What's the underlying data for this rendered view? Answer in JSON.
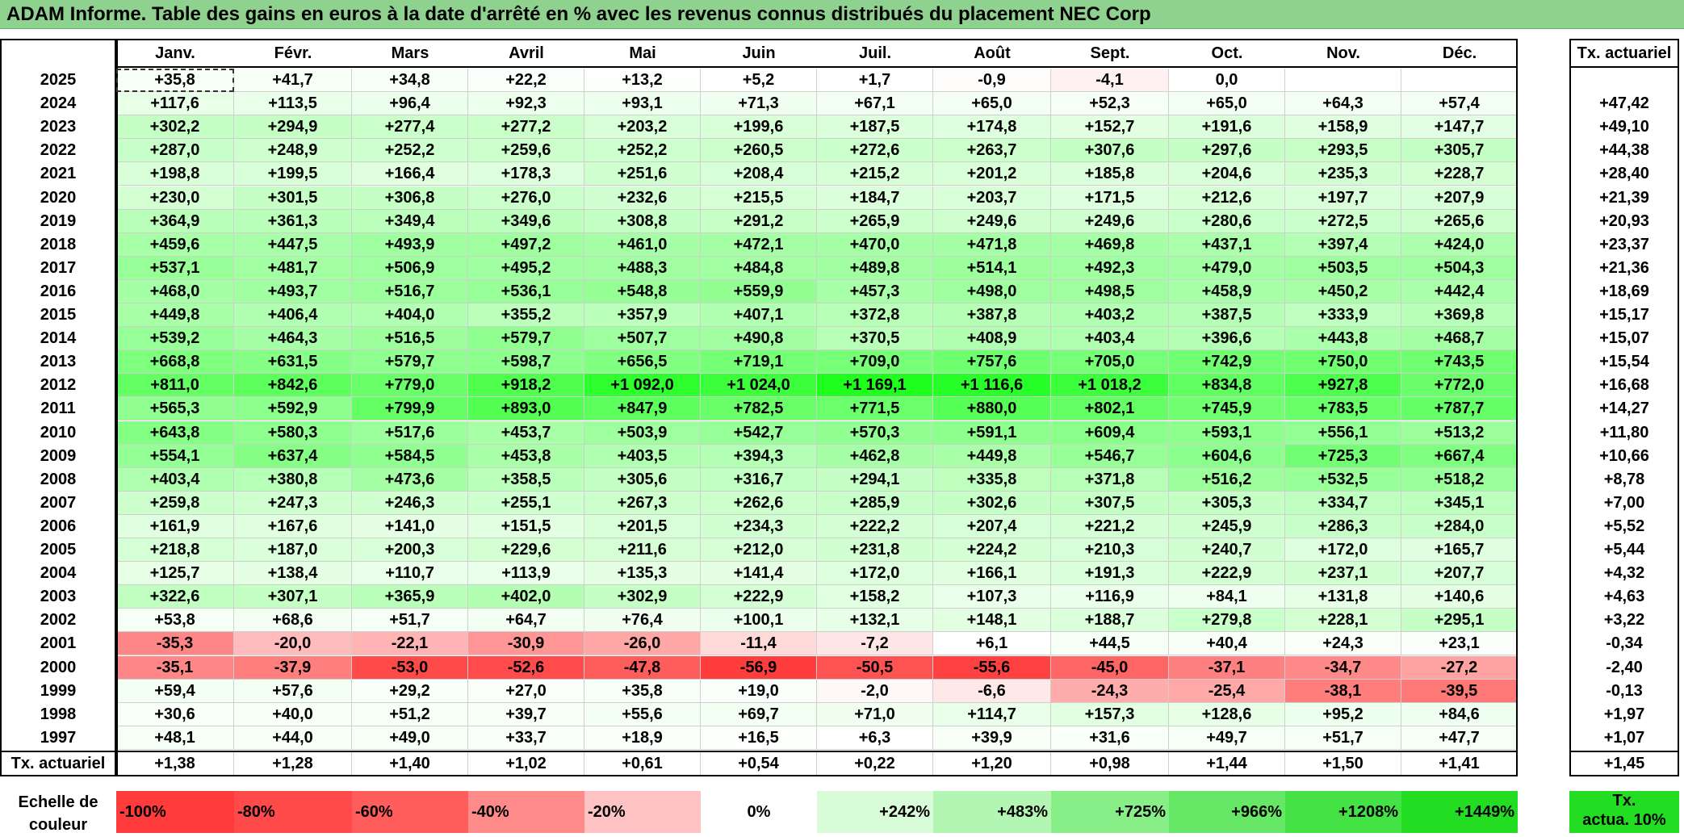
{
  "title": "ADAM Informe. Table des gains en euros à la date d'arrêté en % avec les revenus connus distribués du placement NEC Corp",
  "months": [
    "Janv.",
    "Févr.",
    "Mars",
    "Avril",
    "Mai",
    "Juin",
    "Juil.",
    "Août",
    "Sept.",
    "Oct.",
    "Nov.",
    "Déc."
  ],
  "rate_header": "Tx. actuariel",
  "rows": [
    {
      "year": "2025",
      "values": [
        "+35,8",
        "+41,7",
        "+34,8",
        "+22,2",
        "+13,2",
        "+5,2",
        "+1,7",
        "-0,9",
        "-4,1",
        "0,0",
        "",
        ""
      ],
      "rate": ""
    },
    {
      "year": "2024",
      "values": [
        "+117,6",
        "+113,5",
        "+96,4",
        "+92,3",
        "+93,1",
        "+71,3",
        "+67,1",
        "+65,0",
        "+52,3",
        "+65,0",
        "+64,3",
        "+57,4"
      ],
      "rate": "+47,42"
    },
    {
      "year": "2023",
      "values": [
        "+302,2",
        "+294,9",
        "+277,4",
        "+277,2",
        "+203,2",
        "+199,6",
        "+187,5",
        "+174,8",
        "+152,7",
        "+191,6",
        "+158,9",
        "+147,7"
      ],
      "rate": "+49,10"
    },
    {
      "year": "2022",
      "values": [
        "+287,0",
        "+248,9",
        "+252,2",
        "+259,6",
        "+252,2",
        "+260,5",
        "+272,6",
        "+263,7",
        "+307,6",
        "+297,6",
        "+293,5",
        "+305,7"
      ],
      "rate": "+44,38"
    },
    {
      "year": "2021",
      "values": [
        "+198,8",
        "+199,5",
        "+166,4",
        "+178,3",
        "+251,6",
        "+208,4",
        "+215,2",
        "+201,2",
        "+185,8",
        "+204,6",
        "+235,3",
        "+228,7"
      ],
      "rate": "+28,40"
    },
    {
      "year": "2020",
      "values": [
        "+230,0",
        "+301,5",
        "+306,8",
        "+276,0",
        "+232,6",
        "+215,5",
        "+184,7",
        "+203,7",
        "+171,5",
        "+212,6",
        "+197,7",
        "+207,9"
      ],
      "rate": "+21,39"
    },
    {
      "year": "2019",
      "values": [
        "+364,9",
        "+361,3",
        "+349,4",
        "+349,6",
        "+308,8",
        "+291,2",
        "+265,9",
        "+249,6",
        "+249,6",
        "+280,6",
        "+272,5",
        "+265,6"
      ],
      "rate": "+20,93"
    },
    {
      "year": "2018",
      "values": [
        "+459,6",
        "+447,5",
        "+493,9",
        "+497,2",
        "+461,0",
        "+472,1",
        "+470,0",
        "+471,8",
        "+469,8",
        "+437,1",
        "+397,4",
        "+424,0"
      ],
      "rate": "+23,37"
    },
    {
      "year": "2017",
      "values": [
        "+537,1",
        "+481,7",
        "+506,9",
        "+495,2",
        "+488,3",
        "+484,8",
        "+489,8",
        "+514,1",
        "+492,3",
        "+479,0",
        "+503,5",
        "+504,3"
      ],
      "rate": "+21,36"
    },
    {
      "year": "2016",
      "values": [
        "+468,0",
        "+493,7",
        "+516,7",
        "+536,1",
        "+548,8",
        "+559,9",
        "+457,3",
        "+498,0",
        "+498,5",
        "+458,9",
        "+450,2",
        "+442,4"
      ],
      "rate": "+18,69"
    },
    {
      "year": "2015",
      "values": [
        "+449,8",
        "+406,4",
        "+404,0",
        "+355,2",
        "+357,9",
        "+407,1",
        "+372,8",
        "+387,8",
        "+403,2",
        "+387,5",
        "+333,9",
        "+369,8"
      ],
      "rate": "+15,17"
    },
    {
      "year": "2014",
      "values": [
        "+539,2",
        "+464,3",
        "+516,5",
        "+579,7",
        "+507,7",
        "+490,8",
        "+370,5",
        "+408,9",
        "+403,4",
        "+396,6",
        "+443,8",
        "+468,7"
      ],
      "rate": "+15,07"
    },
    {
      "year": "2013",
      "values": [
        "+668,8",
        "+631,5",
        "+579,7",
        "+598,7",
        "+656,5",
        "+719,1",
        "+709,0",
        "+757,6",
        "+705,0",
        "+742,9",
        "+750,0",
        "+743,5"
      ],
      "rate": "+15,54"
    },
    {
      "year": "2012",
      "values": [
        "+811,0",
        "+842,6",
        "+779,0",
        "+918,2",
        "+1 092,0",
        "+1 024,0",
        "+1 169,1",
        "+1 116,6",
        "+1 018,2",
        "+834,8",
        "+927,8",
        "+772,0"
      ],
      "rate": "+16,68"
    },
    {
      "year": "2011",
      "values": [
        "+565,3",
        "+592,9",
        "+799,9",
        "+893,0",
        "+847,9",
        "+782,5",
        "+771,5",
        "+880,0",
        "+802,1",
        "+745,9",
        "+783,5",
        "+787,7"
      ],
      "rate": "+14,27"
    },
    {
      "year": "2010",
      "values": [
        "+643,8",
        "+580,3",
        "+517,6",
        "+453,7",
        "+503,9",
        "+542,7",
        "+570,3",
        "+591,1",
        "+609,4",
        "+593,1",
        "+556,1",
        "+513,2"
      ],
      "rate": "+11,80"
    },
    {
      "year": "2009",
      "values": [
        "+554,1",
        "+637,4",
        "+584,5",
        "+453,8",
        "+403,5",
        "+394,3",
        "+462,8",
        "+449,8",
        "+546,7",
        "+604,6",
        "+725,3",
        "+667,4"
      ],
      "rate": "+10,66"
    },
    {
      "year": "2008",
      "values": [
        "+403,4",
        "+380,8",
        "+473,6",
        "+358,5",
        "+305,6",
        "+316,7",
        "+294,1",
        "+335,8",
        "+371,8",
        "+516,2",
        "+532,5",
        "+518,2"
      ],
      "rate": "+8,78"
    },
    {
      "year": "2007",
      "values": [
        "+259,8",
        "+247,3",
        "+246,3",
        "+255,1",
        "+267,3",
        "+262,6",
        "+285,9",
        "+302,6",
        "+307,5",
        "+305,3",
        "+334,7",
        "+345,1"
      ],
      "rate": "+7,00"
    },
    {
      "year": "2006",
      "values": [
        "+161,9",
        "+167,6",
        "+141,0",
        "+151,5",
        "+201,5",
        "+234,3",
        "+222,2",
        "+207,4",
        "+221,2",
        "+245,9",
        "+286,3",
        "+284,0"
      ],
      "rate": "+5,52"
    },
    {
      "year": "2005",
      "values": [
        "+218,8",
        "+187,0",
        "+200,3",
        "+229,6",
        "+211,6",
        "+212,0",
        "+231,8",
        "+224,2",
        "+210,3",
        "+240,7",
        "+172,0",
        "+165,7"
      ],
      "rate": "+5,44"
    },
    {
      "year": "2004",
      "values": [
        "+125,7",
        "+138,4",
        "+110,7",
        "+113,9",
        "+135,3",
        "+141,4",
        "+172,0",
        "+166,1",
        "+191,3",
        "+222,9",
        "+237,1",
        "+207,7"
      ],
      "rate": "+4,32"
    },
    {
      "year": "2003",
      "values": [
        "+322,6",
        "+307,1",
        "+365,9",
        "+402,0",
        "+302,9",
        "+222,9",
        "+158,2",
        "+107,3",
        "+116,9",
        "+84,1",
        "+131,8",
        "+140,6"
      ],
      "rate": "+4,63"
    },
    {
      "year": "2002",
      "values": [
        "+53,8",
        "+68,6",
        "+51,7",
        "+64,7",
        "+76,4",
        "+100,1",
        "+132,1",
        "+148,1",
        "+188,7",
        "+279,8",
        "+228,1",
        "+295,1"
      ],
      "rate": "+3,22"
    },
    {
      "year": "2001",
      "values": [
        "-35,3",
        "-20,0",
        "-22,1",
        "-30,9",
        "-26,0",
        "-11,4",
        "-7,2",
        "+6,1",
        "+44,5",
        "+40,4",
        "+24,3",
        "+23,1"
      ],
      "rate": "-0,34"
    },
    {
      "year": "2000",
      "values": [
        "-35,1",
        "-37,9",
        "-53,0",
        "-52,6",
        "-47,8",
        "-56,9",
        "-50,5",
        "-55,6",
        "-45,0",
        "-37,1",
        "-34,7",
        "-27,2"
      ],
      "rate": "-2,40"
    },
    {
      "year": "1999",
      "values": [
        "+59,4",
        "+57,6",
        "+29,2",
        "+27,0",
        "+35,8",
        "+19,0",
        "-2,0",
        "-6,6",
        "-24,3",
        "-25,4",
        "-38,1",
        "-39,5"
      ],
      "rate": "-0,13"
    },
    {
      "year": "1998",
      "values": [
        "+30,6",
        "+40,0",
        "+51,2",
        "+39,7",
        "+55,6",
        "+69,7",
        "+71,0",
        "+114,7",
        "+157,3",
        "+128,6",
        "+95,2",
        "+84,6"
      ],
      "rate": "+1,97"
    },
    {
      "year": "1997",
      "values": [
        "+48,1",
        "+44,0",
        "+49,0",
        "+33,7",
        "+18,9",
        "+16,5",
        "+6,3",
        "+39,9",
        "+31,6",
        "+49,7",
        "+51,7",
        "+47,7"
      ],
      "rate": "+1,07"
    }
  ],
  "footer": {
    "label": "Tx. actuariel",
    "values": [
      "+1,38",
      "+1,28",
      "+1,40",
      "+1,02",
      "+0,61",
      "+0,54",
      "+0,22",
      "+1,20",
      "+0,98",
      "+1,44",
      "+1,50",
      "+1,41"
    ],
    "rate": "+1,45"
  },
  "scale": {
    "label_line1": "Echelle de",
    "label_line2": "couleur",
    "stops": [
      {
        "label": "-100%",
        "color": "#ff3b3b",
        "align": "left"
      },
      {
        "label": "-80%",
        "color": "#ff4a4a",
        "align": "left"
      },
      {
        "label": "-60%",
        "color": "#ff5c5c",
        "align": "left"
      },
      {
        "label": "-40%",
        "color": "#ff8a8a",
        "align": "left"
      },
      {
        "label": "-20%",
        "color": "#ffc2c2",
        "align": "left"
      },
      {
        "label": "0%",
        "color": "#ffffff",
        "align": "center"
      },
      {
        "label": "+242%",
        "color": "#d8fbd8",
        "align": "right"
      },
      {
        "label": "+483%",
        "color": "#b3f5b3",
        "align": "right"
      },
      {
        "label": "+725%",
        "color": "#88ee88",
        "align": "right"
      },
      {
        "label": "+966%",
        "color": "#66e866",
        "align": "right"
      },
      {
        "label": "+1208%",
        "color": "#44e244",
        "align": "right"
      },
      {
        "label": "+1449%",
        "color": "#22dd22",
        "align": "right"
      }
    ],
    "rate_label_line1": "Tx.",
    "rate_label_line2": "actua. 10%",
    "rate_color": "#22dd22"
  }
}
